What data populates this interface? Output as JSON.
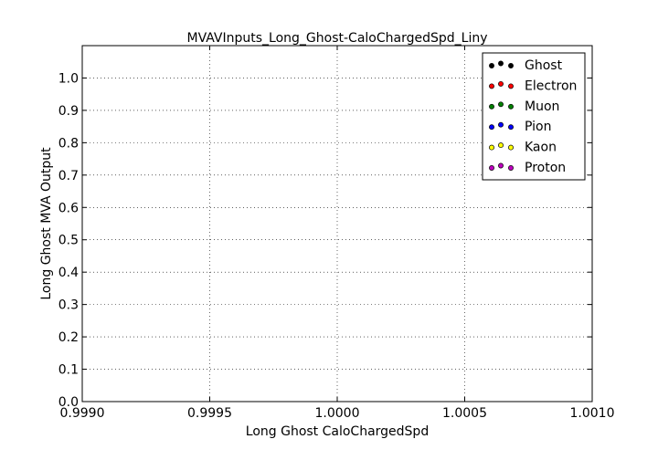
{
  "chart_data": {
    "type": "scatter",
    "title": "MVAVInputs_Long_Ghost-CaloChargedSpd_Liny",
    "xlabel": "Long Ghost CaloChargedSpd",
    "ylabel": "Long Ghost MVA Output",
    "xlim": [
      0.999,
      1.001
    ],
    "ylim": [
      0.0,
      1.1
    ],
    "x_ticks": [
      0.999,
      0.9995,
      1.0,
      1.0005,
      1.001
    ],
    "x_tick_labels": [
      "0.9990",
      "0.9995",
      "1.0000",
      "1.0005",
      "1.0010"
    ],
    "y_ticks": [
      0.0,
      0.1,
      0.2,
      0.3,
      0.4,
      0.5,
      0.6,
      0.7,
      0.8,
      0.9,
      1.0
    ],
    "y_tick_labels": [
      "0.0",
      "0.1",
      "0.2",
      "0.3",
      "0.4",
      "0.5",
      "0.6",
      "0.7",
      "0.8",
      "0.9",
      "1.0"
    ],
    "grid": true,
    "legend_position": "top-right",
    "series": [
      {
        "name": "Ghost",
        "color": "#000000",
        "points": []
      },
      {
        "name": "Electron",
        "color": "#ff0000",
        "points": []
      },
      {
        "name": "Muon",
        "color": "#008000",
        "points": []
      },
      {
        "name": "Pion",
        "color": "#0000ff",
        "points": []
      },
      {
        "name": "Kaon",
        "color": "#ffff00",
        "points": []
      },
      {
        "name": "Proton",
        "color": "#bf00bf",
        "points": []
      }
    ]
  }
}
